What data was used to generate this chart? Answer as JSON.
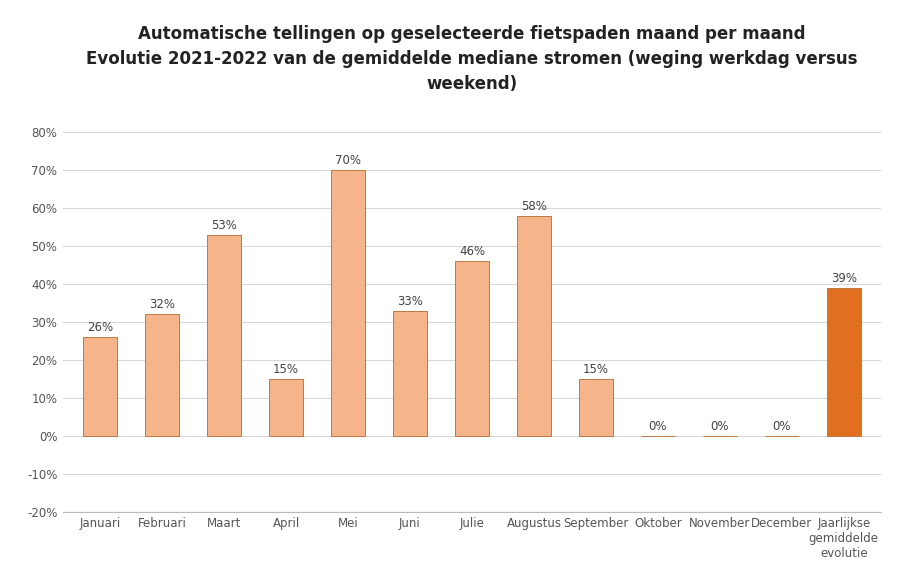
{
  "title_line1": "Automatische tellingen op geselecteerde fietspaden maand per maand",
  "title_line2": "Evolutie 2021-2022 van de gemiddelde mediane stromen (weging werkdag versus",
  "title_line3": "weekend)",
  "categories": [
    "Januari",
    "Februari",
    "Maart",
    "April",
    "Mei",
    "Juni",
    "Julie",
    "Augustus",
    "September",
    "Oktober",
    "November",
    "December",
    "Jaarlijkse\ngemiddelde\nevolutie"
  ],
  "values": [
    0.26,
    0.32,
    0.53,
    0.15,
    0.7,
    0.33,
    0.46,
    0.58,
    0.15,
    0.0,
    0.0,
    0.0,
    0.39
  ],
  "labels": [
    "26%",
    "32%",
    "53%",
    "15%",
    "70%",
    "33%",
    "46%",
    "58%",
    "15%",
    "0%",
    "0%",
    "0%",
    "39%"
  ],
  "bar_color_monthly": "#F5B48A",
  "bar_color_annual": "#E07020",
  "bar_edge_color": "#C07840",
  "ylim_min": -0.2,
  "ylim_max": 0.87,
  "yticks": [
    -0.2,
    -0.1,
    0.0,
    0.1,
    0.2,
    0.3,
    0.4,
    0.5,
    0.6,
    0.7,
    0.8
  ],
  "ytick_labels": [
    "-20%",
    "-10%",
    "0%",
    "10%",
    "20%",
    "30%",
    "40%",
    "50%",
    "60%",
    "70%",
    "80%"
  ],
  "background_color": "#FFFFFF",
  "grid_color": "#D8D8D8",
  "title_fontsize": 12,
  "label_fontsize": 8.5,
  "tick_fontsize": 8.5,
  "bar_width": 0.55
}
